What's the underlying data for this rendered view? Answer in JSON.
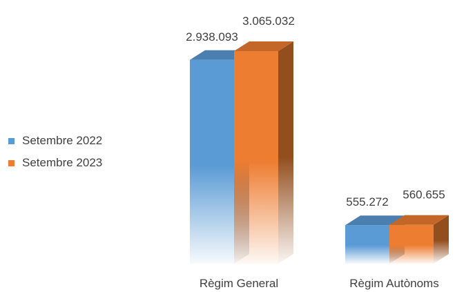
{
  "chart_data": {
    "type": "bar",
    "categories": [
      "Règim General",
      "Règim Autònoms"
    ],
    "series": [
      {
        "name": "Setembre 2022",
        "values": [
          2938093,
          555272
        ],
        "color": "#5B9BD5",
        "labels": [
          "2.938.093",
          "555.272"
        ]
      },
      {
        "name": "Setembre 2023",
        "values": [
          3065032,
          560655
        ],
        "color": "#ED7D31",
        "labels": [
          "3.065.032",
          "560.655"
        ]
      }
    ],
    "title": "",
    "xlabel": "",
    "ylabel": "",
    "legend_position": "left",
    "grid": false,
    "style": "3d-gradient"
  }
}
